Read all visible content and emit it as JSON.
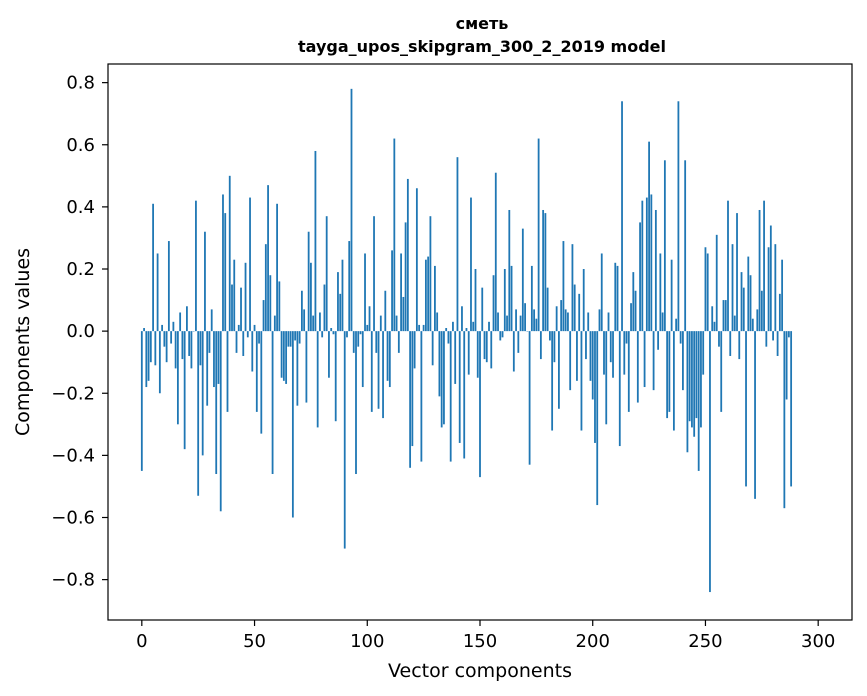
{
  "chart_data": {
    "type": "bar",
    "title": "сметь",
    "subtitle": "tayga_upos_skipgram_300_2_2019 model",
    "xlabel": "Vector components",
    "ylabel": "Components values",
    "xlim": [
      -15,
      315
    ],
    "ylim": [
      -0.93,
      0.86
    ],
    "xticks": [
      0,
      50,
      100,
      150,
      200,
      250,
      300
    ],
    "xtick_labels": [
      "0",
      "50",
      "100",
      "150",
      "200",
      "250",
      "300"
    ],
    "yticks": [
      0.8,
      0.6,
      0.4,
      0.2,
      0.0,
      -0.2,
      -0.4,
      -0.6,
      -0.8
    ],
    "ytick_labels": [
      "0.8",
      "0.6",
      "0.4",
      "0.2",
      "0.0",
      "−0.2",
      "−0.4",
      "−0.6",
      "−0.8"
    ],
    "bar_color": "#1f77b4",
    "grid": false,
    "values": [
      -0.45,
      0.01,
      -0.18,
      -0.16,
      -0.1,
      0.41,
      -0.11,
      0.25,
      -0.2,
      0.02,
      -0.05,
      -0.1,
      0.29,
      -0.04,
      0.03,
      -0.12,
      -0.3,
      0.06,
      -0.09,
      -0.38,
      0.08,
      -0.08,
      -0.12,
      0.0,
      0.42,
      -0.53,
      -0.11,
      -0.4,
      0.32,
      -0.24,
      -0.07,
      0.07,
      -0.18,
      -0.46,
      -0.17,
      -0.58,
      0.44,
      0.38,
      -0.26,
      0.5,
      0.15,
      0.23,
      -0.07,
      0.02,
      0.14,
      -0.08,
      0.22,
      -0.02,
      0.43,
      -0.13,
      0.02,
      -0.26,
      -0.04,
      -0.33,
      0.1,
      0.28,
      0.47,
      0.18,
      -0.46,
      0.05,
      0.41,
      0.16,
      -0.15,
      -0.16,
      -0.17,
      -0.05,
      -0.05,
      -0.6,
      -0.03,
      -0.24,
      -0.04,
      0.13,
      0.07,
      -0.23,
      0.32,
      0.22,
      0.05,
      0.58,
      -0.31,
      0.06,
      -0.02,
      0.15,
      0.37,
      -0.15,
      0.01,
      -0.01,
      -0.29,
      0.19,
      0.12,
      0.23,
      -0.7,
      -0.02,
      0.29,
      0.78,
      -0.07,
      -0.46,
      -0.05,
      -0.01,
      -0.18,
      0.25,
      0.02,
      0.08,
      -0.26,
      0.37,
      -0.07,
      -0.25,
      0.05,
      -0.28,
      0.13,
      -0.16,
      -0.18,
      0.26,
      0.62,
      0.05,
      -0.07,
      0.25,
      0.11,
      0.35,
      0.49,
      -0.44,
      -0.37,
      -0.12,
      0.46,
      0.02,
      -0.42,
      0.02,
      0.23,
      0.24,
      0.37,
      -0.11,
      0.21,
      0.06,
      -0.21,
      -0.31,
      -0.3,
      0.01,
      -0.04,
      -0.42,
      0.03,
      -0.17,
      0.56,
      -0.36,
      0.08,
      -0.41,
      0.01,
      -0.14,
      0.43,
      0.03,
      0.2,
      -0.15,
      -0.47,
      0.14,
      -0.09,
      -0.1,
      0.03,
      -0.12,
      0.18,
      0.51,
      0.06,
      -0.03,
      -0.02,
      0.2,
      0.05,
      0.39,
      0.21,
      -0.13,
      0.07,
      -0.07,
      0.05,
      0.33,
      0.09,
      0.0,
      -0.43,
      0.21,
      0.07,
      0.04,
      0.62,
      -0.09,
      0.39,
      0.38,
      0.14,
      -0.03,
      -0.32,
      -0.1,
      0.08,
      -0.25,
      0.1,
      0.29,
      0.07,
      0.06,
      -0.19,
      0.28,
      0.15,
      -0.16,
      0.12,
      -0.32,
      0.2,
      -0.09,
      0.06,
      -0.16,
      -0.22,
      -0.36,
      -0.56,
      0.07,
      0.25,
      -0.14,
      -0.3,
      0.06,
      -0.1,
      -0.15,
      0.22,
      0.21,
      -0.37,
      0.74,
      -0.14,
      -0.04,
      -0.26,
      0.09,
      0.19,
      0.13,
      -0.23,
      0.35,
      0.42,
      -0.18,
      0.43,
      0.61,
      0.44,
      -0.19,
      0.39,
      -0.06,
      0.25,
      0.06,
      0.55,
      -0.28,
      -0.26,
      0.23,
      -0.32,
      0.04,
      0.74,
      -0.04,
      -0.19,
      0.55,
      -0.39,
      -0.29,
      -0.31,
      -0.34,
      -0.28,
      -0.45,
      -0.31,
      -0.14,
      0.27,
      0.25,
      -0.84,
      0.08,
      0.03,
      0.31,
      -0.05,
      -0.26,
      0.1,
      0.1,
      0.42,
      -0.08,
      0.28,
      0.05,
      0.38,
      -0.09,
      0.19,
      0.14,
      -0.5,
      0.24,
      0.18,
      0.04,
      -0.54,
      0.07,
      0.39,
      0.13,
      0.42,
      -0.05,
      0.27,
      0.34,
      -0.03,
      0.28,
      -0.08,
      0.12,
      0.23,
      -0.57,
      -0.22,
      -0.02,
      -0.5
    ]
  }
}
